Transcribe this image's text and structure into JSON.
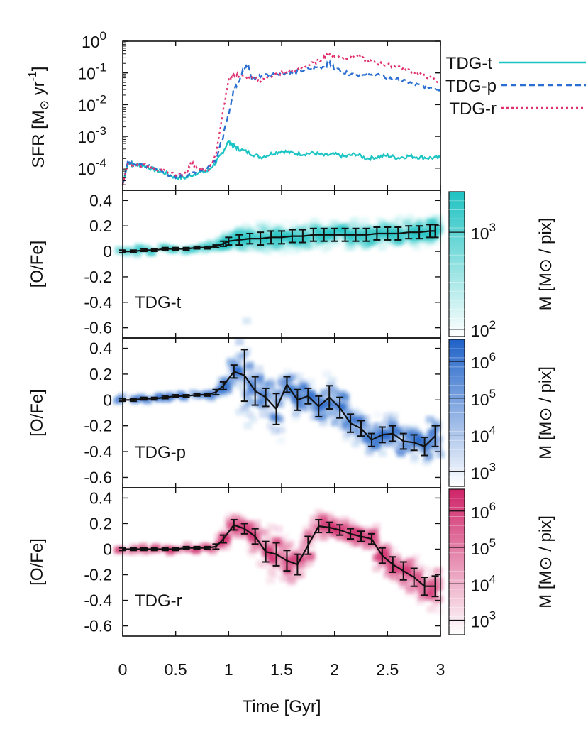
{
  "figure": {
    "xlabel": "Time [Gyr]",
    "xticks": [
      "0",
      "0.5",
      "1",
      "1.5",
      "2",
      "2.5",
      "3"
    ]
  },
  "legend": {
    "entries": [
      "TDG-t",
      "TDG-p",
      "TDG-r"
    ]
  },
  "chart_data": [
    {
      "type": "line",
      "title": "",
      "ylabel_main": "SFR [M",
      "ylabel_sub": "⊙",
      "ylabel_mid": " yr",
      "ylabel_sup": "-1",
      "ylabel_end": "]",
      "yscale": "log",
      "xlim": [
        0,
        3
      ],
      "ylim": [
        2e-05,
        1
      ],
      "ytick_base": "10",
      "yticks": [
        {
          "value": 1,
          "exp": "0"
        },
        {
          "value": 0.1,
          "exp": "-1"
        },
        {
          "value": 0.01,
          "exp": "-2"
        },
        {
          "value": 0.001,
          "exp": "-3"
        },
        {
          "value": 0.0001,
          "exp": "-4"
        }
      ],
      "series": [
        {
          "name": "TDG-t",
          "color": "#1dc4c4",
          "dash": "solid",
          "x": [
            0,
            0.05,
            0.1,
            0.2,
            0.3,
            0.4,
            0.5,
            0.6,
            0.7,
            0.8,
            0.88,
            0.94,
            1.0,
            1.05,
            1.1,
            1.2,
            1.3,
            1.4,
            1.5,
            1.6,
            1.7,
            1.8,
            1.9,
            2.0,
            2.1,
            2.2,
            2.3,
            2.4,
            2.5,
            2.6,
            2.7,
            2.8,
            2.9,
            3.0
          ],
          "y": [
            3e-05,
            0.00015,
            0.00013,
            0.00012,
            9e-05,
            7e-05,
            5e-05,
            5e-05,
            7e-05,
            8e-05,
            0.00015,
            0.0003,
            0.0007,
            0.0005,
            0.0004,
            0.0003,
            0.00022,
            0.00028,
            0.00035,
            0.0003,
            0.00028,
            0.0003,
            0.00025,
            0.00027,
            0.00023,
            0.00028,
            0.0002,
            0.00022,
            0.00025,
            0.00021,
            0.00024,
            0.00022,
            0.00021,
            0.00021
          ]
        },
        {
          "name": "TDG-p",
          "color": "#2a6fd1",
          "dash": "8 5",
          "x": [
            0,
            0.05,
            0.1,
            0.2,
            0.3,
            0.4,
            0.5,
            0.6,
            0.7,
            0.8,
            0.88,
            0.94,
            1.0,
            1.05,
            1.1,
            1.15,
            1.18,
            1.22,
            1.3,
            1.4,
            1.5,
            1.6,
            1.7,
            1.8,
            1.9,
            1.95,
            2.0,
            2.1,
            2.2,
            2.3,
            2.4,
            2.5,
            2.6,
            2.7,
            2.8,
            2.9,
            3.0
          ],
          "y": [
            3e-05,
            0.00017,
            0.00014,
            0.00012,
            0.0001,
            7e-05,
            5e-05,
            6e-05,
            8e-05,
            0.0001,
            0.0002,
            0.0008,
            0.005,
            0.03,
            0.06,
            0.15,
            0.2,
            0.06,
            0.08,
            0.09,
            0.1,
            0.1,
            0.12,
            0.14,
            0.16,
            0.2,
            0.14,
            0.1,
            0.09,
            0.08,
            0.09,
            0.07,
            0.06,
            0.05,
            0.04,
            0.035,
            0.03
          ]
        },
        {
          "name": "TDG-r",
          "color": "#e0306f",
          "dash": "3 4",
          "x": [
            0,
            0.05,
            0.1,
            0.2,
            0.3,
            0.4,
            0.5,
            0.6,
            0.65,
            0.7,
            0.8,
            0.88,
            0.94,
            1.0,
            1.05,
            1.1,
            1.2,
            1.3,
            1.4,
            1.5,
            1.6,
            1.7,
            1.8,
            1.9,
            1.95,
            2.0,
            2.1,
            2.2,
            2.3,
            2.4,
            2.5,
            2.6,
            2.7,
            2.8,
            2.9,
            3.0
          ],
          "y": [
            3e-05,
            0.00015,
            0.00013,
            0.00012,
            0.0001,
            8e-05,
            6e-05,
            7e-05,
            0.00015,
            0.0001,
            8e-05,
            0.00025,
            0.005,
            0.06,
            0.09,
            0.08,
            0.07,
            0.06,
            0.08,
            0.1,
            0.11,
            0.15,
            0.2,
            0.3,
            0.4,
            0.35,
            0.3,
            0.35,
            0.25,
            0.2,
            0.18,
            0.16,
            0.12,
            0.1,
            0.07,
            0.05
          ]
        }
      ]
    },
    {
      "type": "scatter",
      "name": "TDG-t",
      "label": "TDG-t",
      "ylabel": "[O/Fe]",
      "xlim": [
        0,
        3
      ],
      "ylim": [
        -0.68,
        0.48
      ],
      "yticks": [
        "0.4",
        "0.2",
        "0",
        "-0.2",
        "-0.4",
        "-0.6"
      ],
      "color": "#1fc2c2",
      "colorbar_label": "M [M⊙ / pix]",
      "colorbar_ticks": [
        {
          "base": "10",
          "exp": "3",
          "frac": 0.72
        },
        {
          "base": "10",
          "exp": "2",
          "frac": 0.05
        }
      ],
      "x": [
        0.0,
        0.1,
        0.2,
        0.3,
        0.4,
        0.5,
        0.6,
        0.7,
        0.8,
        0.88,
        0.95,
        1.0,
        1.1,
        1.2,
        1.3,
        1.4,
        1.5,
        1.6,
        1.7,
        1.8,
        1.9,
        2.0,
        2.1,
        2.2,
        2.3,
        2.4,
        2.5,
        2.6,
        2.7,
        2.8,
        2.9,
        2.95
      ],
      "y": [
        0.0,
        0.0,
        0.01,
        0.01,
        0.02,
        0.02,
        0.02,
        0.03,
        0.03,
        0.04,
        0.06,
        0.08,
        0.09,
        0.1,
        0.1,
        0.11,
        0.11,
        0.12,
        0.12,
        0.13,
        0.13,
        0.13,
        0.13,
        0.13,
        0.13,
        0.14,
        0.14,
        0.14,
        0.15,
        0.15,
        0.16,
        0.16
      ],
      "err": [
        0.01,
        0.01,
        0.01,
        0.01,
        0.01,
        0.01,
        0.01,
        0.01,
        0.01,
        0.01,
        0.02,
        0.03,
        0.04,
        0.04,
        0.05,
        0.05,
        0.05,
        0.05,
        0.05,
        0.05,
        0.05,
        0.05,
        0.05,
        0.05,
        0.05,
        0.05,
        0.05,
        0.05,
        0.05,
        0.05,
        0.05,
        0.05
      ]
    },
    {
      "type": "scatter",
      "name": "TDG-p",
      "label": "TDG-p",
      "ylabel": "[O/Fe]",
      "xlim": [
        0,
        3
      ],
      "ylim": [
        -0.68,
        0.48
      ],
      "yticks": [
        "0.4",
        "0.2",
        "0",
        "-0.2",
        "-0.4",
        "-0.6"
      ],
      "color": "#1f62c8",
      "colorbar_label": "M [M⊙ / pix]",
      "colorbar_ticks": [
        {
          "base": "10",
          "exp": "6",
          "frac": 0.85
        },
        {
          "base": "10",
          "exp": "5",
          "frac": 0.6
        },
        {
          "base": "10",
          "exp": "4",
          "frac": 0.35
        },
        {
          "base": "10",
          "exp": "3",
          "frac": 0.1
        }
      ],
      "x": [
        0.0,
        0.1,
        0.2,
        0.3,
        0.4,
        0.5,
        0.6,
        0.7,
        0.8,
        0.88,
        0.95,
        1.05,
        1.15,
        1.25,
        1.35,
        1.45,
        1.55,
        1.65,
        1.75,
        1.85,
        1.95,
        2.05,
        2.15,
        2.25,
        2.35,
        2.45,
        2.55,
        2.65,
        2.75,
        2.85,
        2.95
      ],
      "y": [
        0.0,
        0.0,
        0.01,
        0.01,
        0.02,
        0.03,
        0.03,
        0.04,
        0.04,
        0.06,
        0.11,
        0.22,
        0.19,
        0.07,
        0.02,
        -0.07,
        0.12,
        0.0,
        0.03,
        -0.05,
        0.02,
        -0.06,
        -0.18,
        -0.22,
        -0.31,
        -0.27,
        -0.26,
        -0.32,
        -0.33,
        -0.36,
        -0.28
      ],
      "err": [
        0.01,
        0.01,
        0.01,
        0.01,
        0.01,
        0.01,
        0.01,
        0.01,
        0.01,
        0.02,
        0.03,
        0.05,
        0.2,
        0.11,
        0.07,
        0.12,
        0.06,
        0.08,
        0.06,
        0.08,
        0.09,
        0.08,
        0.07,
        0.06,
        0.05,
        0.06,
        0.06,
        0.06,
        0.06,
        0.07,
        0.08
      ]
    },
    {
      "type": "scatter",
      "name": "TDG-r",
      "label": "TDG-r",
      "ylabel": "[O/Fe]",
      "xlim": [
        0,
        3
      ],
      "ylim": [
        -0.68,
        0.48
      ],
      "yticks": [
        "0.4",
        "0.2",
        "0",
        "-0.2",
        "-0.4",
        "-0.6"
      ],
      "color": "#cf2468",
      "colorbar_label": "M [M⊙ / pix]",
      "colorbar_ticks": [
        {
          "base": "10",
          "exp": "6",
          "frac": 0.85
        },
        {
          "base": "10",
          "exp": "5",
          "frac": 0.6
        },
        {
          "base": "10",
          "exp": "4",
          "frac": 0.35
        },
        {
          "base": "10",
          "exp": "3",
          "frac": 0.1
        }
      ],
      "x": [
        0.0,
        0.1,
        0.2,
        0.3,
        0.4,
        0.5,
        0.6,
        0.7,
        0.8,
        0.88,
        0.95,
        1.05,
        1.15,
        1.25,
        1.35,
        1.45,
        1.55,
        1.65,
        1.75,
        1.85,
        1.95,
        2.05,
        2.15,
        2.25,
        2.35,
        2.45,
        2.55,
        2.65,
        2.75,
        2.85,
        2.95
      ],
      "y": [
        0.0,
        0.0,
        0.0,
        0.0,
        0.0,
        0.0,
        0.01,
        0.01,
        0.01,
        0.02,
        0.08,
        0.19,
        0.16,
        0.1,
        -0.02,
        -0.04,
        -0.09,
        -0.12,
        0.03,
        0.18,
        0.17,
        0.15,
        0.12,
        0.1,
        0.08,
        -0.05,
        -0.12,
        -0.17,
        -0.22,
        -0.29,
        -0.29
      ],
      "err": [
        0.01,
        0.01,
        0.01,
        0.01,
        0.01,
        0.01,
        0.01,
        0.01,
        0.01,
        0.02,
        0.03,
        0.04,
        0.04,
        0.06,
        0.08,
        0.09,
        0.08,
        0.08,
        0.07,
        0.05,
        0.04,
        0.04,
        0.04,
        0.04,
        0.04,
        0.06,
        0.06,
        0.07,
        0.07,
        0.07,
        0.08
      ]
    }
  ]
}
